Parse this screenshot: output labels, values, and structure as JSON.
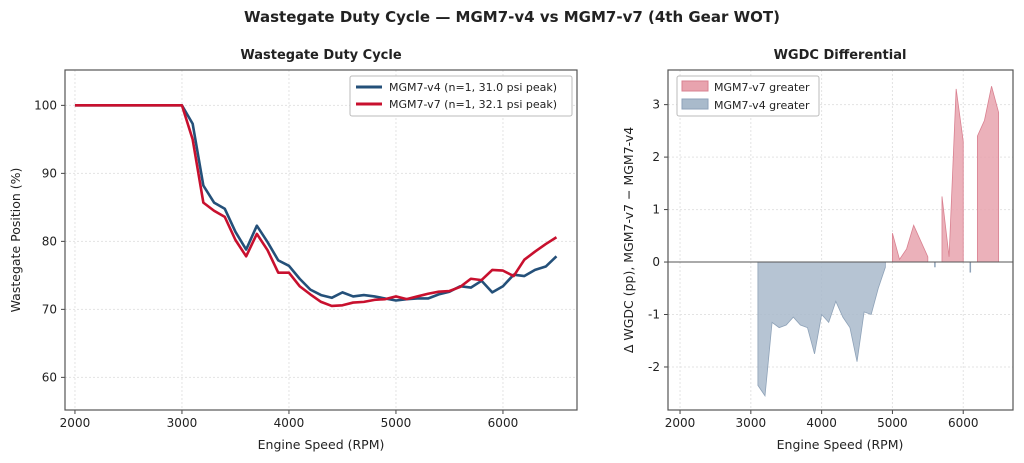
{
  "figure_title": "Wastegate Duty Cycle — MGM7-v4 vs MGM7-v7 (4th Gear WOT)",
  "chart_data": [
    {
      "type": "line",
      "title": "Wastegate Duty Cycle",
      "xlabel": "Engine Speed (RPM)",
      "ylabel": "Wastegate Position (%)",
      "xlim": [
        1907,
        6692
      ],
      "ylim": [
        55.2,
        105.2
      ],
      "xticks": [
        2000,
        3000,
        4000,
        5000,
        6000
      ],
      "yticks": [
        60,
        70,
        80,
        90,
        100
      ],
      "grid": true,
      "legend": "top-right",
      "x": [
        2000,
        2100,
        2200,
        2300,
        2400,
        2500,
        2600,
        2700,
        2800,
        2900,
        3000,
        3100,
        3200,
        3300,
        3400,
        3500,
        3600,
        3700,
        3800,
        3900,
        4000,
        4100,
        4200,
        4300,
        4400,
        4500,
        4600,
        4700,
        4800,
        4900,
        5000,
        5100,
        5200,
        5300,
        5400,
        5500,
        5600,
        5700,
        5800,
        5900,
        6000,
        6100,
        6200,
        6300,
        6400,
        6500
      ],
      "series": [
        {
          "name": "MGM7-v4 (n=1, 31.0 psi peak)",
          "color": "#245079",
          "values": [
            100,
            100,
            100,
            100,
            100,
            100,
            100,
            100,
            100,
            100,
            100,
            97.3,
            88.2,
            85.7,
            84.8,
            81.4,
            78.8,
            82.3,
            79.9,
            77.2,
            76.4,
            74.5,
            72.9,
            72.1,
            71.7,
            72.5,
            71.9,
            72.1,
            71.9,
            71.6,
            71.3,
            71.5,
            71.6,
            71.6,
            72.2,
            72.6,
            73.4,
            73.2,
            74.2,
            72.5,
            73.4,
            75.1,
            74.9,
            75.8,
            76.3,
            77.8
          ]
        },
        {
          "name": "MGM7-v7 (n=1, 32.1 psi peak)",
          "color": "#c8102e",
          "values": [
            100,
            100,
            100,
            100,
            100,
            100,
            100,
            100,
            100,
            100,
            100,
            95.0,
            85.7,
            84.5,
            83.6,
            80.2,
            77.8,
            81.1,
            78.7,
            75.4,
            75.4,
            73.4,
            72.2,
            71.1,
            70.5,
            70.6,
            71.0,
            71.1,
            71.4,
            71.5,
            71.9,
            71.5,
            71.9,
            72.3,
            72.6,
            72.7,
            73.3,
            74.5,
            74.3,
            75.8,
            75.7,
            74.9,
            77.3,
            78.5,
            79.6,
            80.6
          ]
        }
      ]
    },
    {
      "type": "area",
      "title": "WGDC Differential",
      "xlabel": "Engine Speed (RPM)",
      "ylabel": "Δ WGDC (pp), MGM7-v7 − MGM7-v4",
      "xlim": [
        1830,
        6703
      ],
      "ylim": [
        -2.82,
        3.66
      ],
      "xticks": [
        2000,
        3000,
        4000,
        5000,
        6000
      ],
      "yticks": [
        -2,
        -1,
        0,
        1,
        2,
        3
      ],
      "grid": true,
      "legend": "top-left",
      "x": [
        2000,
        2100,
        2200,
        2300,
        2400,
        2500,
        2600,
        2700,
        2800,
        2900,
        3000,
        3100,
        3200,
        3300,
        3400,
        3500,
        3600,
        3700,
        3800,
        3900,
        4000,
        4100,
        4200,
        4300,
        4400,
        4500,
        4600,
        4700,
        4800,
        4900,
        5000,
        5100,
        5200,
        5300,
        5400,
        5500,
        5600,
        5700,
        5800,
        5900,
        6000,
        6100,
        6200,
        6300,
        6400,
        6500
      ],
      "values": [
        0,
        0,
        0,
        0,
        0,
        0,
        0,
        0,
        0,
        0,
        0,
        -2.35,
        -2.55,
        -1.15,
        -1.25,
        -1.2,
        -1.05,
        -1.2,
        -1.25,
        -1.75,
        -1.0,
        -1.15,
        -0.75,
        -1.05,
        -1.25,
        -1.9,
        -0.95,
        -1.0,
        -0.5,
        -0.1,
        0.55,
        0.05,
        0.25,
        0.7,
        0.4,
        0.1,
        -0.1,
        1.25,
        0.1,
        3.3,
        2.3,
        -0.2,
        2.4,
        2.7,
        3.35,
        2.85
      ],
      "series": [
        {
          "name": "MGM7-v7 greater",
          "color": "#e8a3ae"
        },
        {
          "name": "MGM7-v4 greater",
          "color": "#a9bacb"
        }
      ]
    }
  ]
}
